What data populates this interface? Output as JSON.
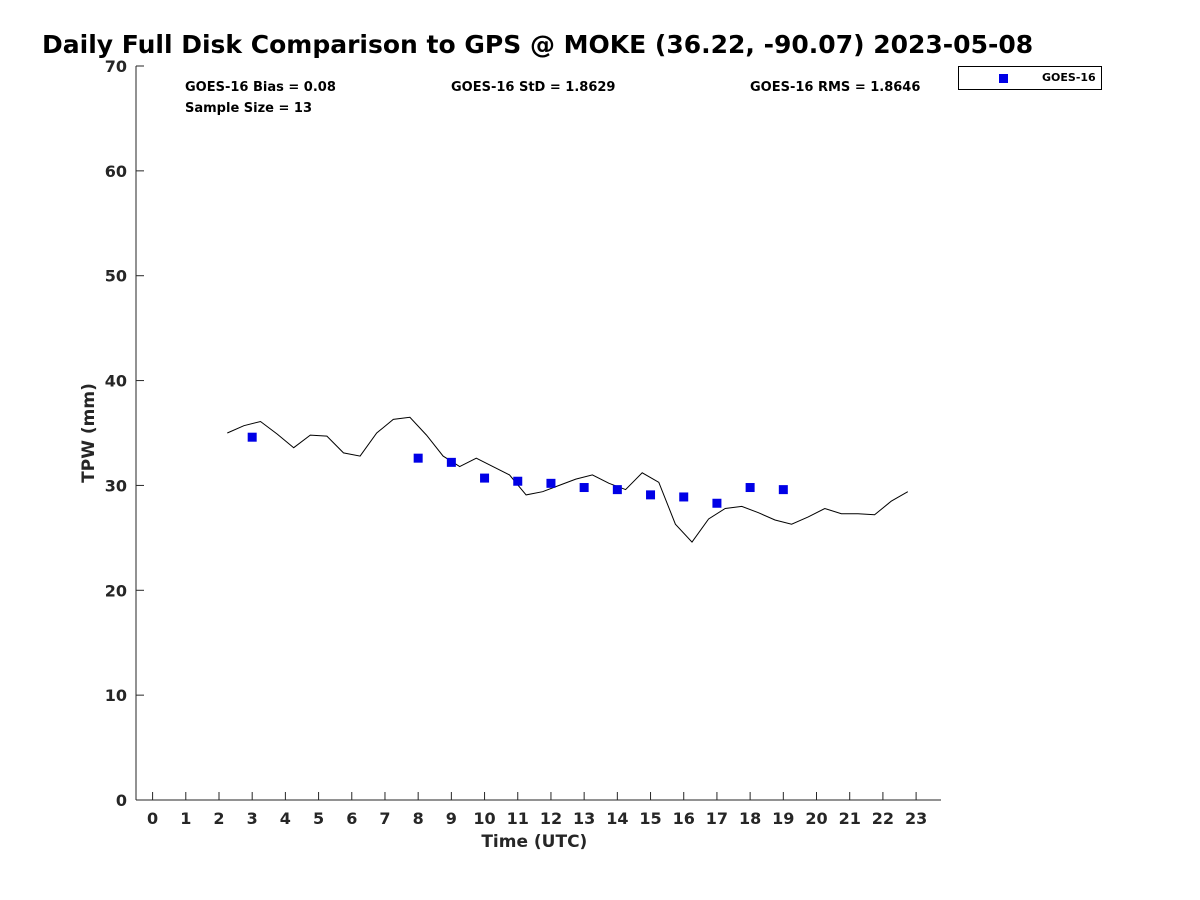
{
  "title": "Daily Full Disk Comparison to GPS @ MOKE (36.22, -90.07) 2023-05-08",
  "stats": {
    "bias": "GOES-16 Bias = 0.08",
    "sample_size": "Sample Size = 13",
    "std": "GOES-16 StD = 1.8629",
    "rms": "GOES-16 RMS = 1.8646"
  },
  "legend": {
    "label": "GOES-16",
    "marker_color": "#0000e6"
  },
  "chart_data": {
    "type": "scatter",
    "title": "Daily Full Disk Comparison to GPS @ MOKE (36.22, -90.07) 2023-05-08",
    "xlabel": "Time (UTC)",
    "ylabel": "TPW (mm)",
    "xlim": [
      -0.5,
      23.75
    ],
    "ylim": [
      0,
      70
    ],
    "xticks": [
      0,
      1,
      2,
      3,
      4,
      5,
      6,
      7,
      8,
      9,
      10,
      11,
      12,
      13,
      14,
      15,
      16,
      17,
      18,
      19,
      20,
      21,
      22,
      23
    ],
    "yticks": [
      0,
      10,
      20,
      30,
      40,
      50,
      60,
      70
    ],
    "grid": false,
    "legend_position": "top-right outside",
    "series": [
      {
        "name": "GOES-16",
        "kind": "scatter",
        "color": "#0000e6",
        "x": [
          3,
          8,
          9,
          10,
          11,
          12,
          13,
          14,
          15,
          16,
          17,
          18,
          19
        ],
        "y": [
          34.6,
          32.6,
          32.2,
          30.7,
          30.4,
          30.2,
          29.8,
          29.6,
          29.1,
          28.9,
          28.3,
          29.8,
          29.6
        ]
      },
      {
        "kind": "line",
        "color": "#000000",
        "x": [
          2.25,
          2.75,
          3.25,
          3.75,
          4.25,
          4.75,
          5.25,
          5.75,
          6.25,
          6.75,
          7.25,
          7.75,
          8.25,
          8.75,
          9.25,
          9.75,
          10.25,
          10.75,
          11.25,
          11.75,
          12.25,
          12.75,
          13.25,
          13.75,
          14.25,
          14.75,
          15.25,
          15.75,
          16.25,
          16.75,
          17.25,
          17.75,
          18.25,
          18.75,
          19.25,
          19.75,
          20.25,
          20.75,
          21.25,
          21.75,
          22.25,
          22.75
        ],
        "y": [
          35.0,
          35.7,
          36.1,
          34.9,
          33.6,
          34.8,
          34.7,
          33.1,
          32.8,
          35.0,
          36.3,
          36.5,
          34.8,
          32.8,
          31.8,
          32.6,
          31.8,
          31.0,
          29.1,
          29.4,
          30.0,
          30.6,
          31.0,
          30.2,
          29.6,
          31.2,
          30.3,
          26.3,
          24.6,
          26.8,
          27.8,
          28.0,
          27.4,
          26.7,
          26.3,
          27.0,
          27.8,
          27.3,
          27.3,
          27.2,
          28.5,
          29.4
        ]
      }
    ]
  }
}
